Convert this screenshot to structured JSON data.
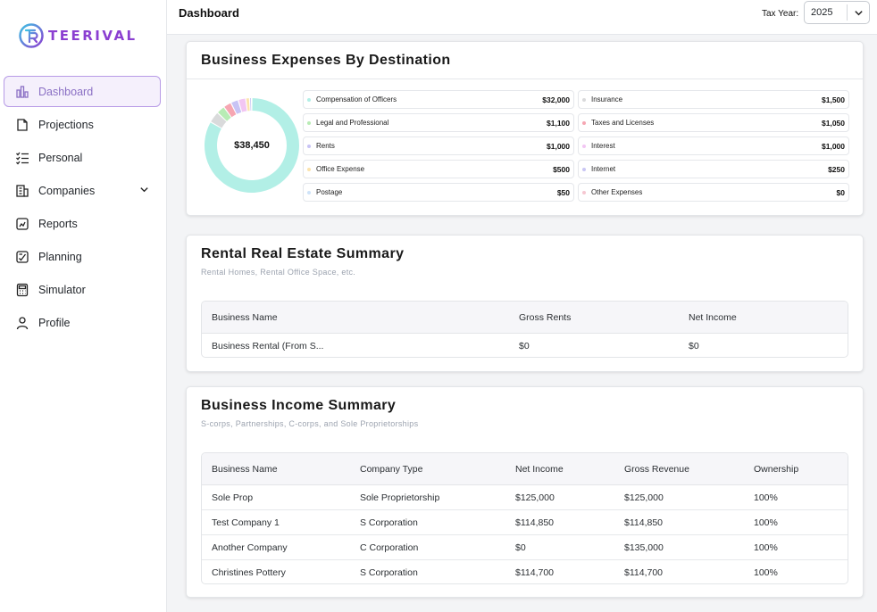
{
  "brand": {
    "name": "TEERIVAL",
    "colors": {
      "logo_gradient": [
        "#3ec2e3",
        "#8b3fd1"
      ],
      "active_nav_bg": "#f5f0fc",
      "active_nav_border": "#b79be6"
    }
  },
  "sidebar": {
    "items": [
      {
        "label": "Dashboard",
        "icon": "bar-chart-icon",
        "active": true
      },
      {
        "label": "Projections",
        "icon": "document-icon"
      },
      {
        "label": "Personal",
        "icon": "checklist-icon"
      },
      {
        "label": "Companies",
        "icon": "building-icon",
        "has_dropdown": true
      },
      {
        "label": "Reports",
        "icon": "report-icon"
      },
      {
        "label": "Planning",
        "icon": "planning-icon"
      },
      {
        "label": "Simulator",
        "icon": "calculator-icon"
      },
      {
        "label": "Profile",
        "icon": "user-icon"
      }
    ]
  },
  "header": {
    "title": "Dashboard",
    "tax_year_label": "Tax Year:",
    "tax_year_value": "2025"
  },
  "expenses": {
    "title": "Business Expenses By Destination",
    "total": "$38,450",
    "items": [
      {
        "label": "Compensation of Officers",
        "amount": "$32,000",
        "value": 32000,
        "color": "#b2efe6"
      },
      {
        "label": "Insurance",
        "amount": "$1,500",
        "value": 1500,
        "color": "#d9dadb"
      },
      {
        "label": "Legal and Professional",
        "amount": "$1,100",
        "value": 1100,
        "color": "#b8ecb5"
      },
      {
        "label": "Taxes and Licenses",
        "amount": "$1,050",
        "value": 1050,
        "color": "#f6a6b2"
      },
      {
        "label": "Rents",
        "amount": "$1,000",
        "value": 1000,
        "color": "#c8c3f5"
      },
      {
        "label": "Interest",
        "amount": "$1,000",
        "value": 1000,
        "color": "#f2c6f3"
      },
      {
        "label": "Office Expense",
        "amount": "$500",
        "value": 500,
        "color": "#fbe3ad"
      },
      {
        "label": "Internet",
        "amount": "$250",
        "value": 250,
        "color": "#c9c6f3"
      },
      {
        "label": "Postage",
        "amount": "$50",
        "value": 50,
        "color": "#cfe3f9"
      },
      {
        "label": "Other Expenses",
        "amount": "$0",
        "value": 0,
        "color": "#f6c7d1"
      }
    ]
  },
  "rental": {
    "title": "Rental Real Estate Summary",
    "subtitle": "Rental Homes, Rental Office Space, etc.",
    "columns": [
      "Business Name",
      "Gross Rents",
      "Net Income"
    ],
    "rows": [
      [
        "Business Rental (From S...",
        "$0",
        "$0"
      ]
    ]
  },
  "income": {
    "title": "Business Income Summary",
    "subtitle": "S-corps, Partnerships, C-corps, and Sole Proprietorships",
    "columns": [
      "Business Name",
      "Company Type",
      "Net Income",
      "Gross Revenue",
      "Ownership"
    ],
    "rows": [
      [
        "Sole Prop",
        "Sole Proprietorship",
        "$125,000",
        "$125,000",
        "100%"
      ],
      [
        "Test Company 1",
        "S Corporation",
        "$114,850",
        "$114,850",
        "100%"
      ],
      [
        "Another Company",
        "C Corporation",
        "$0",
        "$135,000",
        "100%"
      ],
      [
        "Christines Pottery",
        "S Corporation",
        "$114,700",
        "$114,700",
        "100%"
      ]
    ]
  }
}
